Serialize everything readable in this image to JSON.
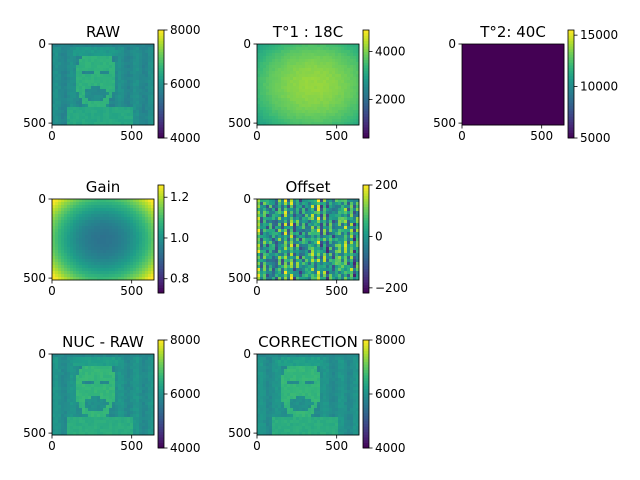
{
  "figure": {
    "background": "#ffffff",
    "colormap": "viridis"
  },
  "chart_data": [
    {
      "type": "heatmap",
      "id": "raw",
      "title": "RAW",
      "image": "face",
      "xticks": [
        0,
        500
      ],
      "yticks": [
        0,
        500
      ],
      "xlim": [
        0,
        640
      ],
      "ylim": [
        512,
        0
      ],
      "colorbar": {
        "range": [
          4000,
          8000
        ],
        "ticks": [
          4000,
          6000,
          8000
        ],
        "tick_labels": [
          "4000",
          "6000",
          "8000"
        ]
      }
    },
    {
      "type": "heatmap",
      "id": "t1",
      "title": "T°1 : 18C",
      "image": "warm-center",
      "xticks": [
        0,
        500
      ],
      "yticks": [
        0,
        500
      ],
      "xlim": [
        0,
        640
      ],
      "ylim": [
        512,
        0
      ],
      "colorbar": {
        "range": [
          400,
          4900
        ],
        "ticks": [
          2000,
          4000
        ],
        "tick_labels": [
          "2000",
          "4000"
        ]
      }
    },
    {
      "type": "heatmap",
      "id": "t2",
      "title": "T°2: 40C",
      "image": "uniform-low",
      "xticks": [
        0,
        500
      ],
      "yticks": [
        0,
        500
      ],
      "xlim": [
        0,
        640
      ],
      "ylim": [
        512,
        0
      ],
      "colorbar": {
        "range": [
          5000,
          15500
        ],
        "ticks": [
          5000,
          10000,
          15000
        ],
        "tick_labels": [
          "5000",
          "10000",
          "15000"
        ]
      }
    },
    {
      "type": "heatmap",
      "id": "gain",
      "title": "Gain",
      "image": "vignette",
      "xticks": [
        0,
        500
      ],
      "yticks": [
        0,
        500
      ],
      "xlim": [
        0,
        640
      ],
      "ylim": [
        512,
        0
      ],
      "colorbar": {
        "range": [
          0.73,
          1.26
        ],
        "ticks": [
          0.8,
          1.0,
          1.2
        ],
        "tick_labels": [
          "0.8",
          "1.0",
          "1.2"
        ]
      }
    },
    {
      "type": "heatmap",
      "id": "offset",
      "title": "Offset",
      "image": "column-noise",
      "xticks": [
        0,
        500
      ],
      "yticks": [
        0,
        500
      ],
      "xlim": [
        0,
        640
      ],
      "ylim": [
        512,
        0
      ],
      "colorbar": {
        "range": [
          -220,
          200
        ],
        "ticks": [
          -200,
          0,
          200
        ],
        "tick_labels": [
          "−200",
          "0",
          "200"
        ]
      }
    },
    {
      "type": "heatmap",
      "id": "nuc",
      "title": "NUC - RAW",
      "image": "face-corrected",
      "xticks": [
        0,
        500
      ],
      "yticks": [
        0,
        500
      ],
      "xlim": [
        0,
        640
      ],
      "ylim": [
        512,
        0
      ],
      "colorbar": {
        "range": [
          4000,
          8000
        ],
        "ticks": [
          4000,
          6000,
          8000
        ],
        "tick_labels": [
          "4000",
          "6000",
          "8000"
        ]
      }
    },
    {
      "type": "heatmap",
      "id": "correction",
      "title": "CORRECTION",
      "image": "face-corrected",
      "xticks": [
        0,
        500
      ],
      "yticks": [
        0,
        500
      ],
      "xlim": [
        0,
        640
      ],
      "ylim": [
        512,
        0
      ],
      "colorbar": {
        "range": [
          4000,
          8000
        ],
        "ticks": [
          4000,
          6000,
          8000
        ],
        "tick_labels": [
          "4000",
          "6000",
          "8000"
        ]
      }
    }
  ]
}
